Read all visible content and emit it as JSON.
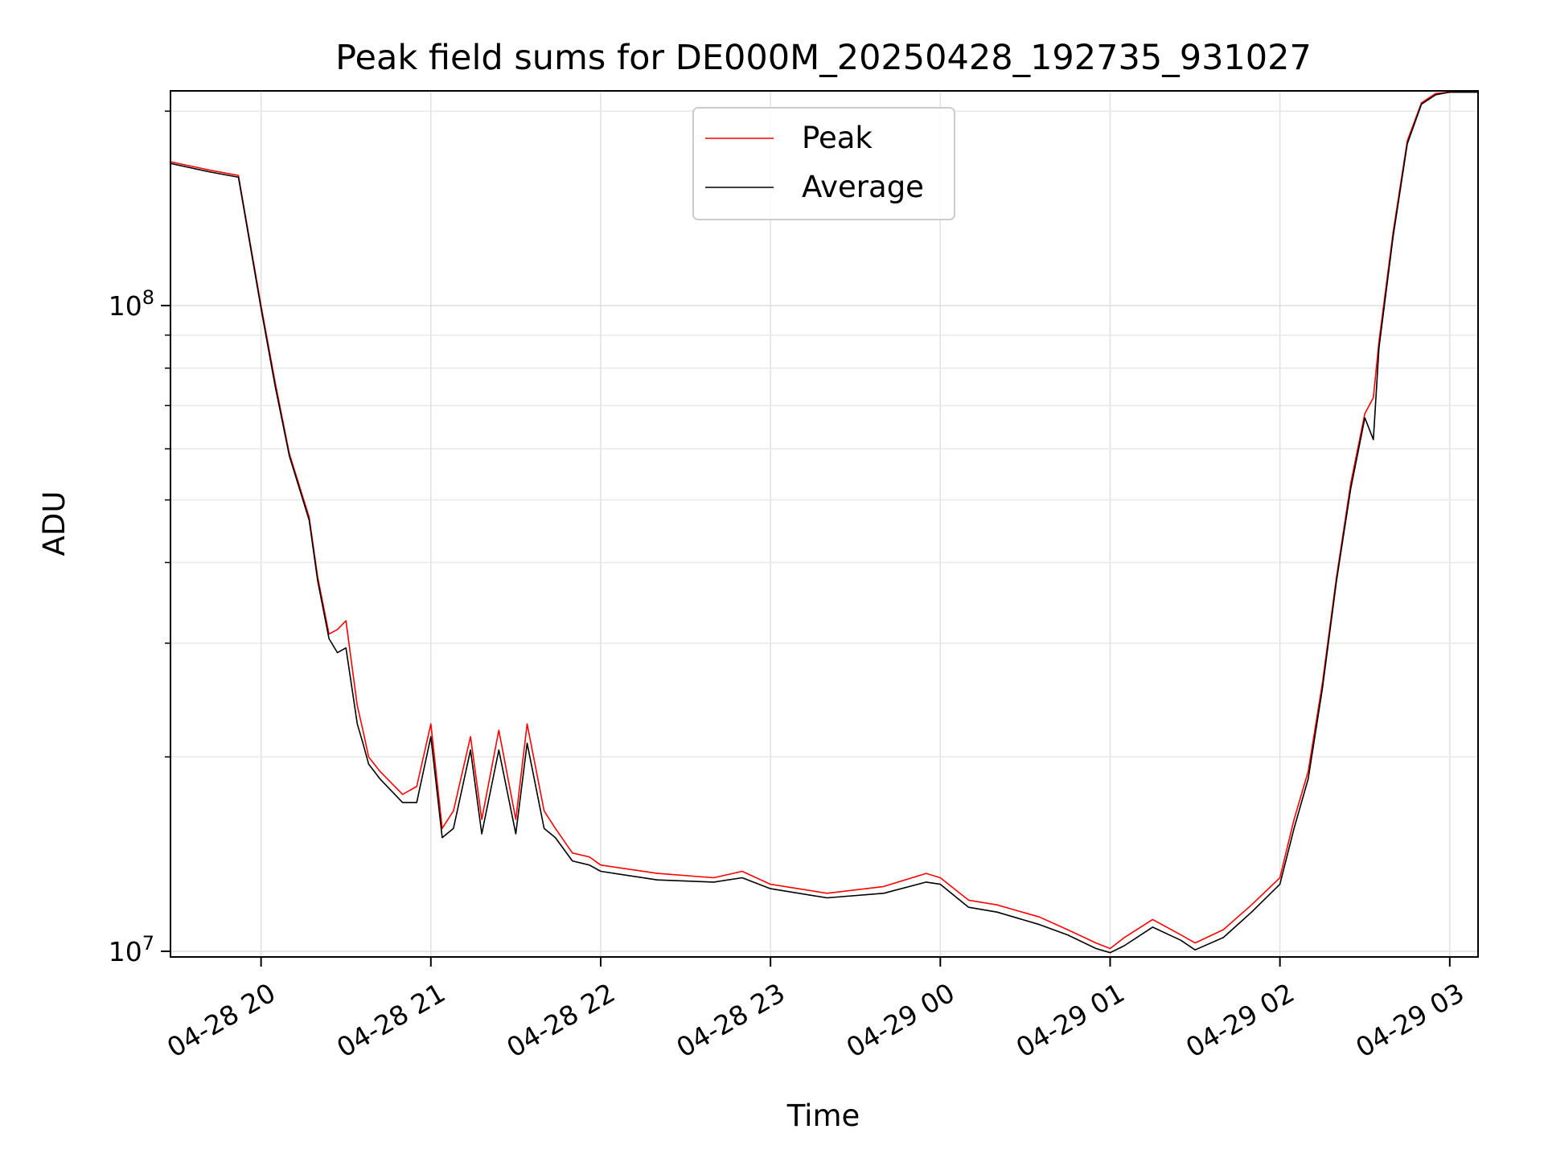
{
  "chart_data": {
    "type": "line",
    "title": "Peak field sums for DE000M_20250428_192735_931027",
    "xlabel": "Time",
    "ylabel": "ADU",
    "y_scale": "log",
    "xlim": [
      "2025-04-28T19:28",
      "2025-04-29T03:10"
    ],
    "ylim": [
      9800000,
      215000000
    ],
    "x_ticks": [
      "04-28 20",
      "04-28 21",
      "04-28 22",
      "04-28 23",
      "04-29 00",
      "04-29 01",
      "04-29 02",
      "04-29 03"
    ],
    "x_tick_times": [
      "2025-04-28T20:00",
      "2025-04-28T21:00",
      "2025-04-28T22:00",
      "2025-04-28T23:00",
      "2025-04-29T00:00",
      "2025-04-29T01:00",
      "2025-04-29T02:00",
      "2025-04-29T03:00"
    ],
    "y_major_ticks": [
      10000000,
      100000000
    ],
    "y_tick_labels": [
      {
        "base": "10",
        "exp": "7"
      },
      {
        "base": "10",
        "exp": "8"
      }
    ],
    "y_minor_ticks": [
      20000000,
      30000000,
      40000000,
      50000000,
      60000000,
      70000000,
      80000000,
      90000000,
      200000000
    ],
    "grid": true,
    "legend_position": "top-center",
    "series": [
      {
        "name": "Peak",
        "color": "#ff0000",
        "x": [
          "2025-04-28T19:28",
          "2025-04-28T19:42",
          "2025-04-28T19:52",
          "2025-04-28T20:00",
          "2025-04-28T20:05",
          "2025-04-28T20:10",
          "2025-04-28T20:17",
          "2025-04-28T20:20",
          "2025-04-28T20:24",
          "2025-04-28T20:27",
          "2025-04-28T20:30",
          "2025-04-28T20:34",
          "2025-04-28T20:36",
          "2025-04-28T20:38",
          "2025-04-28T20:42",
          "2025-04-28T20:50",
          "2025-04-28T20:55",
          "2025-04-28T21:00",
          "2025-04-28T21:04",
          "2025-04-28T21:08",
          "2025-04-28T21:14",
          "2025-04-28T21:18",
          "2025-04-28T21:24",
          "2025-04-28T21:30",
          "2025-04-28T21:34",
          "2025-04-28T21:40",
          "2025-04-28T21:44",
          "2025-04-28T21:50",
          "2025-04-28T21:56",
          "2025-04-28T22:00",
          "2025-04-28T22:20",
          "2025-04-28T22:40",
          "2025-04-28T22:50",
          "2025-04-28T23:00",
          "2025-04-28T23:20",
          "2025-04-28T23:40",
          "2025-04-28T23:55",
          "2025-04-29T00:00",
          "2025-04-29T00:10",
          "2025-04-29T00:20",
          "2025-04-29T00:35",
          "2025-04-29T00:45",
          "2025-04-29T00:55",
          "2025-04-29T01:00",
          "2025-04-29T01:05",
          "2025-04-29T01:15",
          "2025-04-29T01:25",
          "2025-04-29T01:30",
          "2025-04-29T01:40",
          "2025-04-29T01:50",
          "2025-04-29T02:00",
          "2025-04-29T02:05",
          "2025-04-29T02:10",
          "2025-04-29T02:15",
          "2025-04-29T02:20",
          "2025-04-29T02:25",
          "2025-04-29T02:30",
          "2025-04-29T02:33",
          "2025-04-29T02:35",
          "2025-04-29T02:40",
          "2025-04-29T02:45",
          "2025-04-29T02:50",
          "2025-04-29T02:55",
          "2025-04-29T03:00",
          "2025-04-29T03:10"
        ],
        "y": [
          167000000,
          162000000,
          159000000,
          100000000,
          76000000,
          59000000,
          47000000,
          38000000,
          31000000,
          31500000,
          32500000,
          24000000,
          22000000,
          20000000,
          19000000,
          17500000,
          18000000,
          22500000,
          15500000,
          16500000,
          21500000,
          16000000,
          22000000,
          16000000,
          22500000,
          16500000,
          15500000,
          14200000,
          14000000,
          13600000,
          13200000,
          13000000,
          13300000,
          12700000,
          12300000,
          12600000,
          13200000,
          13000000,
          12000000,
          11800000,
          11300000,
          10800000,
          10300000,
          10100000,
          10500000,
          11200000,
          10600000,
          10300000,
          10800000,
          11800000,
          13000000,
          16000000,
          19000000,
          26000000,
          38000000,
          53000000,
          68000000,
          72000000,
          88000000,
          130000000,
          180000000,
          206000000,
          213000000,
          214000000,
          214000000
        ]
      },
      {
        "name": "Average",
        "color": "#000000",
        "x": [
          "2025-04-28T19:28",
          "2025-04-28T19:42",
          "2025-04-28T19:52",
          "2025-04-28T20:00",
          "2025-04-28T20:05",
          "2025-04-28T20:10",
          "2025-04-28T20:17",
          "2025-04-28T20:20",
          "2025-04-28T20:24",
          "2025-04-28T20:27",
          "2025-04-28T20:30",
          "2025-04-28T20:34",
          "2025-04-28T20:36",
          "2025-04-28T20:38",
          "2025-04-28T20:42",
          "2025-04-28T20:50",
          "2025-04-28T20:55",
          "2025-04-28T21:00",
          "2025-04-28T21:04",
          "2025-04-28T21:08",
          "2025-04-28T21:14",
          "2025-04-28T21:18",
          "2025-04-28T21:24",
          "2025-04-28T21:30",
          "2025-04-28T21:34",
          "2025-04-28T21:40",
          "2025-04-28T21:44",
          "2025-04-28T21:50",
          "2025-04-28T21:56",
          "2025-04-28T22:00",
          "2025-04-28T22:20",
          "2025-04-28T22:40",
          "2025-04-28T22:50",
          "2025-04-28T23:00",
          "2025-04-28T23:20",
          "2025-04-28T23:40",
          "2025-04-28T23:55",
          "2025-04-29T00:00",
          "2025-04-29T00:10",
          "2025-04-29T00:20",
          "2025-04-29T00:35",
          "2025-04-29T00:45",
          "2025-04-29T00:55",
          "2025-04-29T01:00",
          "2025-04-29T01:05",
          "2025-04-29T01:15",
          "2025-04-29T01:25",
          "2025-04-29T01:30",
          "2025-04-29T01:40",
          "2025-04-29T01:50",
          "2025-04-29T02:00",
          "2025-04-29T02:05",
          "2025-04-29T02:10",
          "2025-04-29T02:15",
          "2025-04-29T02:20",
          "2025-04-29T02:25",
          "2025-04-29T02:30",
          "2025-04-29T02:33",
          "2025-04-29T02:35",
          "2025-04-29T02:40",
          "2025-04-29T02:45",
          "2025-04-29T02:50",
          "2025-04-29T02:55",
          "2025-04-29T03:00",
          "2025-04-29T03:10"
        ],
        "y": [
          166000000,
          161000000,
          158000000,
          99000000,
          75000000,
          58500000,
          46500000,
          37500000,
          30500000,
          29000000,
          29500000,
          22500000,
          21000000,
          19500000,
          18500000,
          17000000,
          17000000,
          21500000,
          15000000,
          15500000,
          20500000,
          15200000,
          20500000,
          15200000,
          21000000,
          15500000,
          15000000,
          13800000,
          13600000,
          13300000,
          12900000,
          12800000,
          13000000,
          12500000,
          12100000,
          12300000,
          12800000,
          12700000,
          11700000,
          11500000,
          11000000,
          10600000,
          10100000,
          9950000,
          10200000,
          10900000,
          10400000,
          10050000,
          10500000,
          11500000,
          12700000,
          15500000,
          18500000,
          25500000,
          37500000,
          52000000,
          67000000,
          62000000,
          86000000,
          128000000,
          178000000,
          205000000,
          212000000,
          214000000,
          214000000
        ]
      }
    ]
  }
}
